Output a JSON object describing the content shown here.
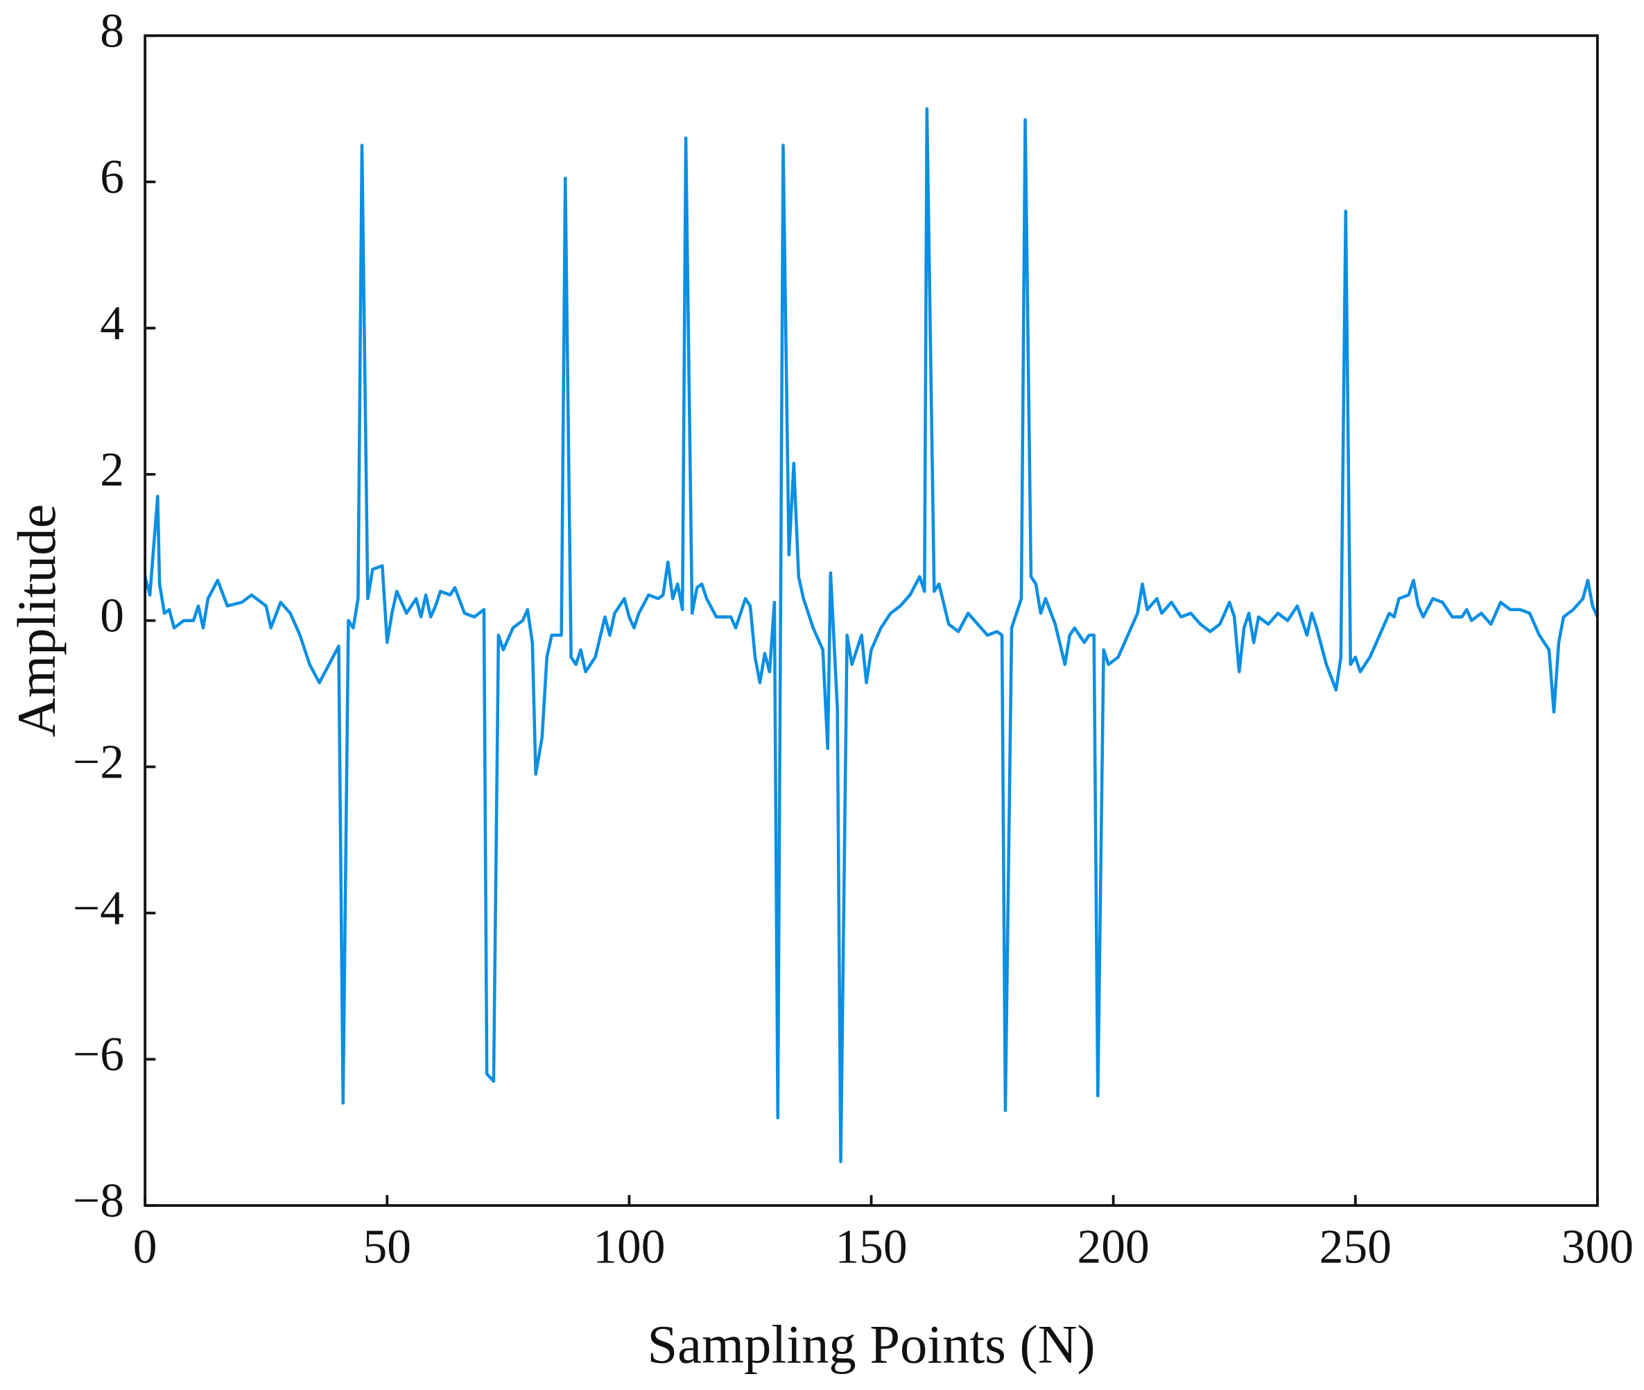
{
  "chart_data": {
    "type": "line",
    "xlabel": "Sampling Points (N)",
    "ylabel": "Amplitude",
    "color": "#0a8fe3",
    "xlim": [
      0,
      300
    ],
    "ylim": [
      -8,
      8
    ],
    "xticks": [
      0,
      50,
      100,
      150,
      200,
      250,
      300
    ],
    "yticks": [
      {
        "value": -8,
        "label": "−8"
      },
      {
        "value": -6,
        "label": "−6"
      },
      {
        "value": -4,
        "label": "−4"
      },
      {
        "value": -2,
        "label": "−2"
      },
      0,
      2,
      4,
      6,
      8
    ],
    "x": [
      0,
      1,
      2.6,
      3,
      4,
      5,
      6,
      8,
      10,
      11,
      12,
      13,
      15,
      17,
      20,
      22,
      25,
      26,
      28,
      30,
      32,
      34,
      36,
      38,
      40,
      40.9,
      42,
      43,
      44,
      44.8,
      46,
      47,
      49,
      50,
      51,
      52,
      54,
      56,
      57,
      58,
      59,
      60,
      61,
      63,
      64,
      66,
      68,
      70,
      70.6,
      72,
      73,
      74,
      76,
      78,
      79,
      80,
      80.7,
      82,
      83,
      84,
      86,
      86.8,
      88,
      89,
      90,
      91,
      93,
      95,
      96,
      97,
      99,
      100,
      101,
      102,
      104,
      106,
      107,
      108,
      109,
      110,
      111,
      111.7,
      113,
      114,
      115,
      116,
      118,
      121,
      122,
      124,
      125,
      126,
      127,
      128,
      129,
      130,
      130.7,
      131.8,
      133,
      134,
      135,
      136,
      138,
      140,
      141,
      141.6,
      143,
      143.7,
      145,
      146,
      148,
      149,
      150,
      152,
      154,
      156,
      158,
      160,
      161,
      161.5,
      163,
      164,
      166,
      168,
      170,
      172,
      174,
      176,
      177,
      177.7,
      179,
      180,
      181,
      181.8,
      183,
      184,
      185,
      186,
      188,
      190,
      191,
      192,
      194,
      195,
      196,
      196.8,
      198,
      199,
      201,
      203,
      205,
      206,
      207,
      209,
      210,
      212,
      214,
      216,
      218,
      220,
      222,
      224,
      225,
      226,
      227,
      228,
      229,
      230,
      232,
      234,
      236,
      238,
      240,
      241,
      242,
      244,
      246,
      247,
      248,
      249,
      250,
      251,
      253,
      255,
      256,
      257,
      258,
      259,
      261,
      262,
      263,
      264,
      266,
      268,
      270,
      272,
      273,
      274,
      276,
      278,
      280,
      282,
      284,
      286,
      288,
      290,
      291,
      292,
      293,
      295,
      297,
      298,
      299,
      300
    ],
    "values": [
      0.6,
      0.35,
      1.7,
      0.5,
      0.1,
      0.15,
      -0.1,
      0,
      0,
      0.2,
      -0.1,
      0.3,
      0.55,
      0.2,
      0.25,
      0.35,
      0.2,
      -0.1,
      0.25,
      0.1,
      -0.2,
      -0.6,
      -0.85,
      -0.6,
      -0.35,
      -6.6,
      0,
      -0.1,
      0.3,
      6.5,
      0.3,
      0.7,
      0.75,
      -0.3,
      0.1,
      0.4,
      0.1,
      0.3,
      0.05,
      0.35,
      0.05,
      0.2,
      0.4,
      0.35,
      0.45,
      0.1,
      0.05,
      0.15,
      -6.2,
      -6.3,
      -0.2,
      -0.4,
      -0.1,
      0,
      0.15,
      -0.3,
      -2.1,
      -1.6,
      -0.5,
      -0.2,
      -0.2,
      6.05,
      -0.5,
      -0.6,
      -0.4,
      -0.7,
      -0.5,
      0.05,
      -0.2,
      0.1,
      0.3,
      0.05,
      -0.1,
      0.1,
      0.35,
      0.3,
      0.35,
      0.8,
      0.3,
      0.5,
      0.15,
      6.6,
      0.1,
      0.45,
      0.5,
      0.3,
      0.05,
      0.05,
      -0.1,
      0.3,
      0.2,
      -0.5,
      -0.85,
      -0.45,
      -0.7,
      0.25,
      -6.8,
      6.5,
      0.9,
      2.15,
      0.6,
      0.3,
      -0.1,
      -0.4,
      -1.75,
      0.65,
      -1.2,
      -7.4,
      -0.2,
      -0.6,
      -0.2,
      -0.85,
      -0.4,
      -0.1,
      0.1,
      0.2,
      0.35,
      0.6,
      0.4,
      7.0,
      0.4,
      0.5,
      -0.05,
      -0.15,
      0.1,
      -0.05,
      -0.2,
      -0.15,
      -0.2,
      -6.7,
      -0.1,
      0.1,
      0.3,
      6.85,
      0.6,
      0.5,
      0.1,
      0.3,
      -0.05,
      -0.6,
      -0.2,
      -0.1,
      -0.3,
      -0.2,
      -0.2,
      -6.5,
      -0.4,
      -0.6,
      -0.5,
      -0.2,
      0.1,
      0.5,
      0.15,
      0.3,
      0.1,
      0.25,
      0.05,
      0.1,
      -0.05,
      -0.15,
      -0.05,
      0.25,
      0.05,
      -0.7,
      -0.1,
      0.1,
      -0.3,
      0.05,
      -0.05,
      0.1,
      0,
      0.2,
      -0.2,
      0.1,
      -0.1,
      -0.6,
      -0.95,
      -0.5,
      5.6,
      -0.6,
      -0.5,
      -0.7,
      -0.5,
      -0.2,
      -0.05,
      0.1,
      0.05,
      0.3,
      0.35,
      0.55,
      0.2,
      0.05,
      0.3,
      0.25,
      0.05,
      0.05,
      0.15,
      0,
      0.1,
      -0.05,
      0.25,
      0.15,
      0.15,
      0.1,
      -0.2,
      -0.4,
      -1.25,
      -0.3,
      0.05,
      0.15,
      0.3,
      0.55,
      0.2,
      0.05
    ]
  }
}
